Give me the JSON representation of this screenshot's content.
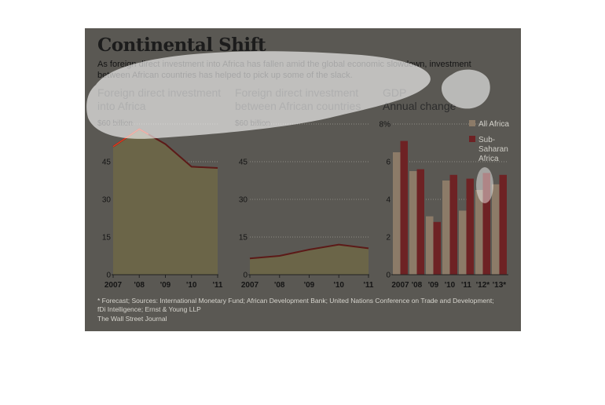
{
  "title": "Continental Shift",
  "subtitle_line1": "As foreign direct investment into Africa has fallen amid the global economic slowdown, investment",
  "subtitle_line2": "between African countries has helped to pick up some of the slack.",
  "footnote_line1": "* Forecast; Sources: International Monetary Fund; African Development Bank; United Nations Conference on Trade and Development;",
  "footnote_line2": "fDi Intelligence; Ernst & Young LLP",
  "credit": "The Wall Street Journal",
  "colors": {
    "background": "#5a5853",
    "area_fill": "#6b6548",
    "line": "#5c1a18",
    "line_highlight": "#e03a1e",
    "all_africa": "#8c7b68",
    "sub_saharan": "#6e2224",
    "axis_text": "#151515",
    "grid": "#8e8c86"
  },
  "chart_data": [
    {
      "type": "area",
      "title_line1": "Foreign direct investment",
      "title_line2": "into Africa",
      "unit_label": "$60 billion",
      "x": [
        "2007",
        "'08",
        "'09",
        "'10",
        "'11"
      ],
      "values": [
        51,
        58,
        52,
        43,
        42.5
      ],
      "ylim": [
        0,
        60
      ],
      "yticks": [
        "0",
        "15",
        "30",
        "45",
        ""
      ],
      "grid": true
    },
    {
      "type": "area",
      "title_line1": "Foreign direct investment",
      "title_line2": "between African countries",
      "unit_label": "$60 billion",
      "x": [
        "2007",
        "'08",
        "'09",
        "'10",
        "'11"
      ],
      "values": [
        6.5,
        7.5,
        10,
        12,
        10.5
      ],
      "ylim": [
        0,
        60
      ],
      "yticks": [
        "0",
        "15",
        "30",
        "45",
        ""
      ],
      "grid": true
    },
    {
      "type": "bar",
      "title_line1": "GDP",
      "title_line2": "Annual change",
      "unit_label": "8%",
      "categories": [
        "2007",
        "'08",
        "'09",
        "'10",
        "'11",
        "'12*",
        "'13*"
      ],
      "series": [
        {
          "name": "All Africa",
          "values": [
            6.5,
            5.5,
            3.1,
            5.0,
            3.4,
            4.5,
            4.8
          ]
        },
        {
          "name": "Sub-Saharan Africa",
          "values": [
            7.1,
            5.6,
            2.8,
            5.3,
            5.1,
            5.4,
            5.3
          ]
        }
      ],
      "legend_sub_lines": [
        "Sub-",
        "Saharan",
        "Africa"
      ],
      "ylim": [
        0,
        8
      ],
      "yticks": [
        "0",
        "2",
        "4",
        "6",
        ""
      ],
      "grid": true,
      "legend": "top-right"
    }
  ]
}
